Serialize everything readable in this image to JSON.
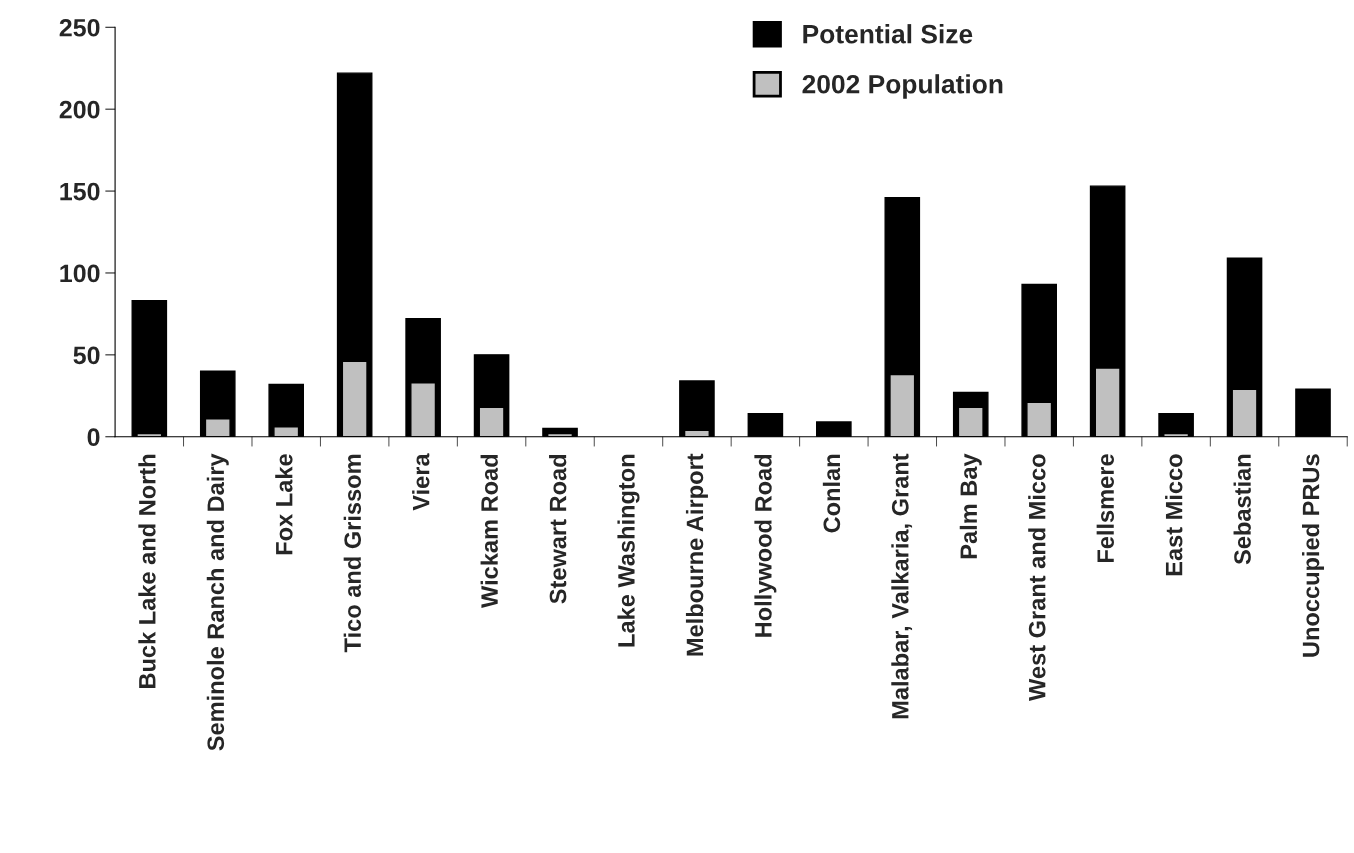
{
  "chart_data": {
    "type": "bar",
    "categories": [
      "Buck Lake and North",
      "Seminole Ranch and Dairy",
      "Fox Lake",
      "Tico and Grissom",
      "Viera",
      "Wickam Road",
      "Stewart Road",
      "Lake Washington",
      "Melbourne Airport",
      "Hollywood Road",
      "Conlan",
      "Malabar, Valkaria, Grant",
      "Palm Bay",
      "West Grant and Micco",
      "Fellsmere",
      "East Micco",
      "Sebastian",
      "Unoccupied PRUs"
    ],
    "series": [
      {
        "name": "Potential Size",
        "color": "#000000",
        "values": [
          83,
          40,
          32,
          222,
          72,
          50,
          5,
          null,
          34,
          14,
          9,
          146,
          27,
          93,
          153,
          14,
          109,
          29
        ]
      },
      {
        "name": "2002 Population",
        "color": "#c0c0c0",
        "values": [
          2,
          11,
          6,
          46,
          33,
          18,
          2,
          null,
          4,
          null,
          null,
          38,
          18,
          21,
          42,
          2,
          29,
          null
        ]
      }
    ],
    "ylim": [
      0,
      250
    ],
    "yticks": [
      0,
      50,
      100,
      150,
      200,
      250
    ],
    "grid": false,
    "legend": "top"
  }
}
